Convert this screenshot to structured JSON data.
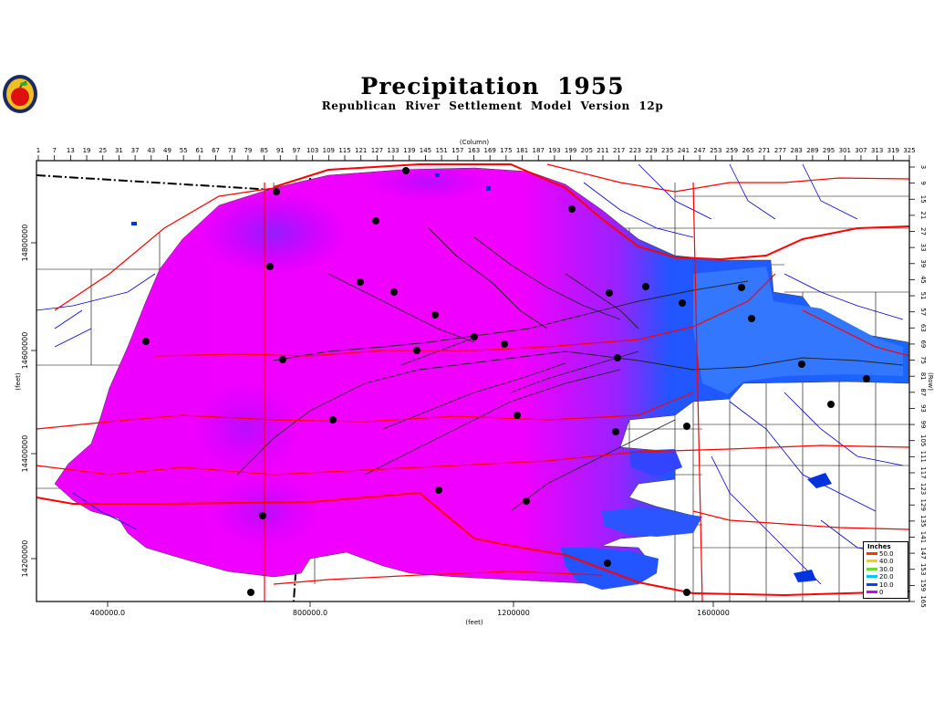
{
  "title": "Precipitation  1955",
  "subtitle": "Republican  River  Settlement  Model  Version  12p",
  "logo": {
    "icon": "apple-seal-icon"
  },
  "axes": {
    "column_label": "(Column)",
    "row_label": "(Row)",
    "x_label": "(feet)",
    "y_label": "(feet)",
    "column_ticks": [
      "1",
      "7",
      "13",
      "19",
      "25",
      "31",
      "37",
      "43",
      "49",
      "55",
      "61",
      "67",
      "73",
      "79",
      "85",
      "91",
      "97",
      "103",
      "109",
      "115",
      "121",
      "127",
      "133",
      "139",
      "145",
      "151",
      "157",
      "163",
      "169",
      "175",
      "181",
      "187",
      "193",
      "199",
      "205",
      "211",
      "217",
      "223",
      "229",
      "235",
      "241",
      "247",
      "253",
      "259",
      "265",
      "271",
      "277",
      "283",
      "289",
      "295",
      "301",
      "307",
      "313",
      "319",
      "325"
    ],
    "row_ticks": [
      "3",
      "9",
      "15",
      "21",
      "27",
      "33",
      "39",
      "45",
      "51",
      "57",
      "63",
      "69",
      "75",
      "81",
      "87",
      "93",
      "99",
      "105",
      "111",
      "117",
      "123",
      "129",
      "135",
      "141",
      "147",
      "153",
      "159",
      "165"
    ],
    "x_ticks": [
      "400000.0",
      "800000.0",
      "1200000",
      "1600000"
    ],
    "y_ticks": [
      "14800000",
      "14600000",
      "14400000",
      "14200000"
    ]
  },
  "legend": {
    "title": "Inches",
    "items": [
      {
        "label": "50.0",
        "color": "#ff3300"
      },
      {
        "label": "40.0",
        "color": "#ffcc00"
      },
      {
        "label": "30.0",
        "color": "#66dd33"
      },
      {
        "label": "20.0",
        "color": "#00c8ff"
      },
      {
        "label": "10.0",
        "color": "#0044ff"
      },
      {
        "label": "0",
        "color": "#cc00ff"
      }
    ]
  },
  "colors": {
    "magenta": "#ff00ff",
    "violet": "#bb11ff",
    "blue": "#0055ff",
    "highway": "#ff0000",
    "river": "#0000cc",
    "frame": "#000000"
  }
}
